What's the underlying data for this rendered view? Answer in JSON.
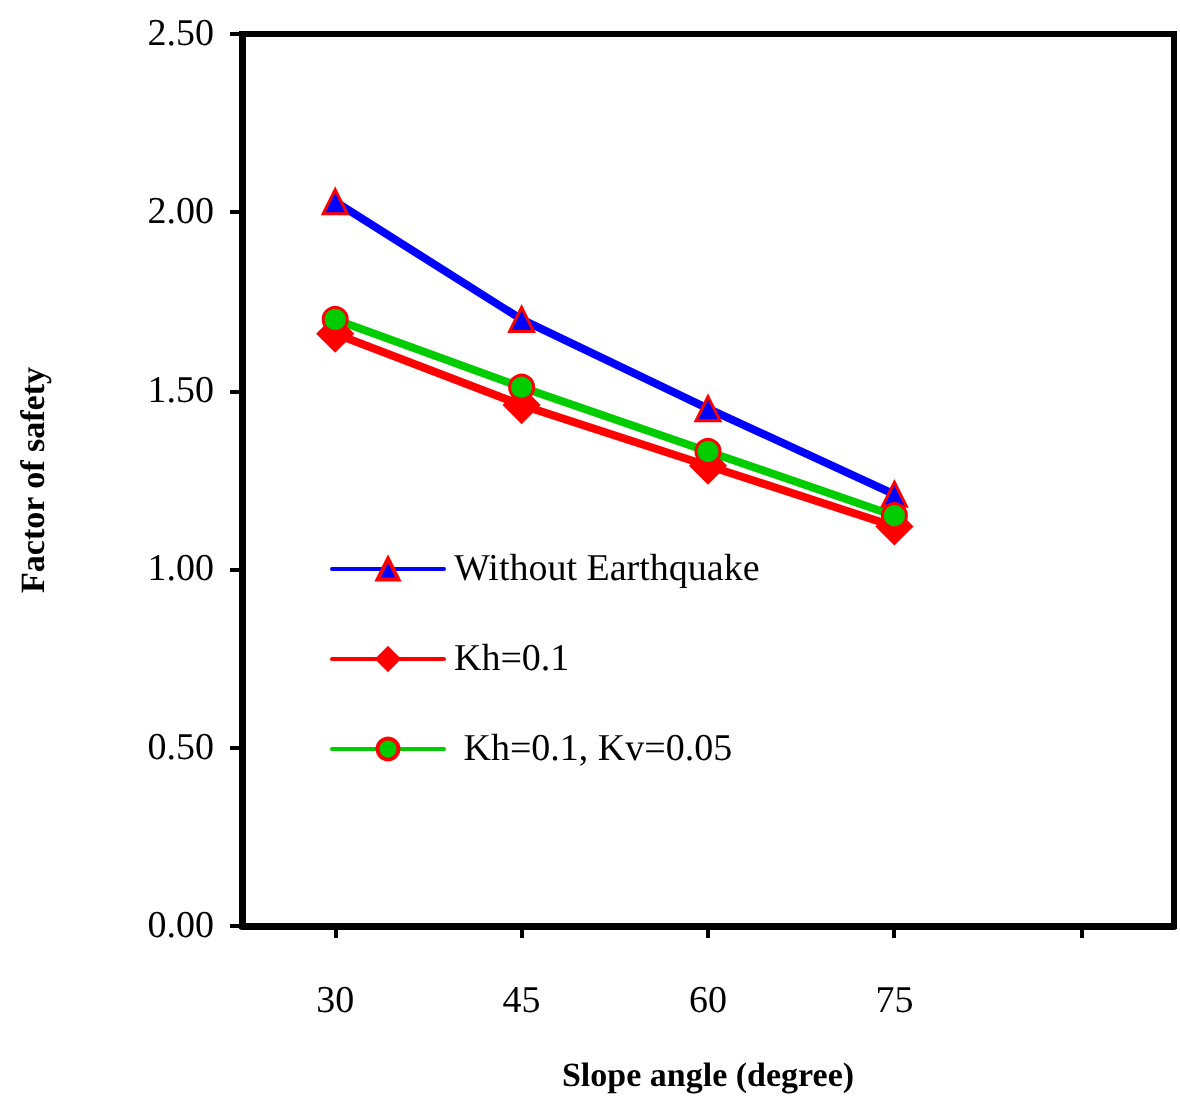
{
  "chart_data": {
    "type": "line",
    "xlabel": "Slope angle (degree)",
    "ylabel": "Factor of safety",
    "categories": [
      "30",
      "45",
      "60",
      "75",
      null
    ],
    "series": [
      {
        "name": "Without Earthquake",
        "color": "#0000ff",
        "marker": "triangle",
        "values": [
          2.03,
          1.7,
          1.45,
          1.21,
          null
        ]
      },
      {
        "name": "Kh=0.1",
        "color": "#ff0000",
        "marker": "diamond",
        "values": [
          1.66,
          1.46,
          1.29,
          1.12,
          null
        ]
      },
      {
        "name": " Kh=0.1, Kv=0.05",
        "color": "#00cc00",
        "marker": "circle",
        "values": [
          1.7,
          1.51,
          1.33,
          1.15,
          null
        ]
      }
    ],
    "ylim": [
      0,
      2.5
    ],
    "yticks": [
      {
        "value": 0,
        "label": "0.00"
      },
      {
        "value": 0.5,
        "label": "0.50"
      },
      {
        "value": 1,
        "label": "1.00"
      },
      {
        "value": 1.5,
        "label": "1.50"
      },
      {
        "value": 2,
        "label": "2.00"
      },
      {
        "value": 2.5,
        "label": "2.50"
      }
    ],
    "grid": false,
    "legend": "left",
    "line_style": "solid"
  }
}
